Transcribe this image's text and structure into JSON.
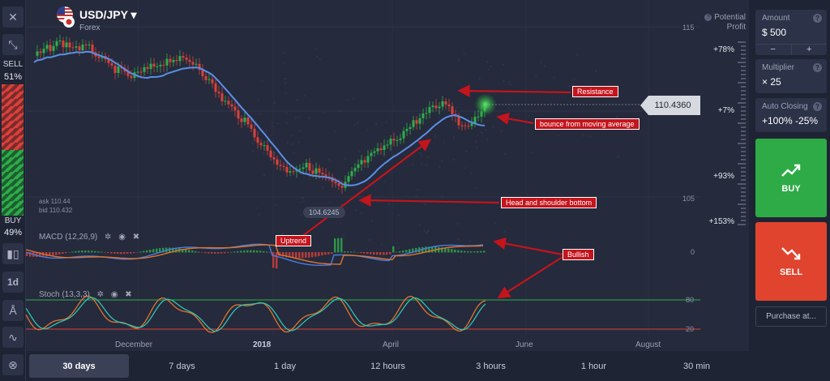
{
  "asset": {
    "name": "USD/JPY",
    "category": "Forex"
  },
  "left_bar": {
    "sell_label": "SELL",
    "sell_pct": "51%",
    "buy_label": "BUY",
    "buy_pct": "49%",
    "timeframe_label": "1d"
  },
  "quote": {
    "ask": "ask 110.44",
    "bid": "bid 110.432"
  },
  "price_axis": {
    "top": "115",
    "bottom": "105"
  },
  "current_price": "110.4360",
  "low_marker": "104.6245",
  "indicators": {
    "macd": {
      "label": "MACD (12,26,9)",
      "zero": "0"
    },
    "stoch": {
      "label": "Stoch (13,3,3)",
      "upper": "80",
      "lower": "20"
    }
  },
  "annotations": {
    "resistance": "Resistance",
    "bounce": "bounce from moving average",
    "head_shoulder": "Head and shoulder bottom",
    "uptrend": "Uptrend",
    "bullish": "Bullish"
  },
  "x_axis": {
    "december": "December",
    "year": "2018",
    "april": "April",
    "june": "June",
    "august": "August"
  },
  "right_scale": {
    "potential_profit": "Potential Profit",
    "p1": "+78%",
    "p2": "+7%",
    "p3": "+93%",
    "p4": "+153%"
  },
  "timeframes": [
    "30 days",
    "7 days",
    "1 day",
    "12 hours",
    "3 hours",
    "1 hour",
    "30 min"
  ],
  "active_timeframe": "30 days",
  "panel": {
    "amount_label": "Amount",
    "amount_value": "$  500",
    "multiplier_label": "Multiplier",
    "multiplier_value": "× 25",
    "auto_closing_label": "Auto Closing",
    "auto_closing_value": "+100% -25%",
    "buy_label": "BUY",
    "sell_label": "SELL",
    "purchase_label": "Purchase at..."
  },
  "colors": {
    "buy": "#2eab47",
    "sell": "#e0442e",
    "ma_line": "#5b8fe6",
    "annotation": "#c4141c",
    "candle_up": "#2fae4a",
    "candle_down": "#d9413a",
    "macd_line": "#4a7ee0",
    "signal_line": "#e0742e"
  }
}
